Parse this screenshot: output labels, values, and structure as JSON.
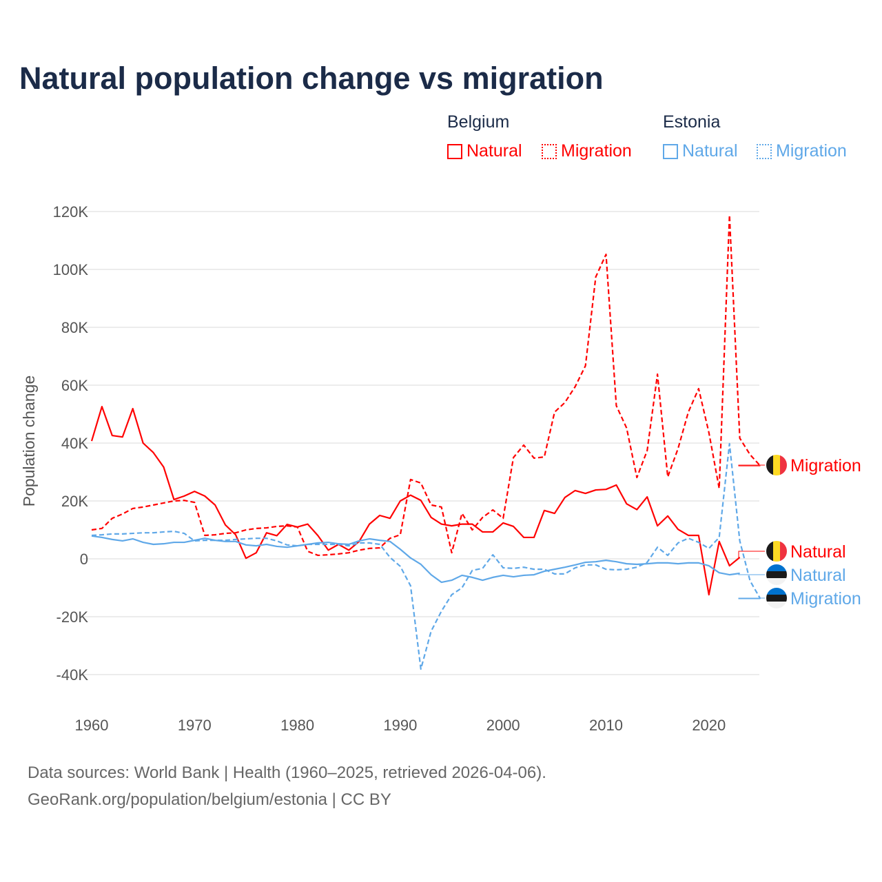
{
  "title": "Natural population change vs migration",
  "legend": {
    "groups": [
      {
        "name": "Belgium",
        "items": [
          "Natural",
          "Migration"
        ],
        "color": "#ff0000"
      },
      {
        "name": "Estonia",
        "items": [
          "Natural",
          "Migration"
        ],
        "color": "#5fa8e8"
      }
    ]
  },
  "footer": {
    "line1": "Data sources: World Bank | Health (1960–2025, retrieved 2026-04-06).",
    "line2": "GeoRank.org/population/belgium/estonia | CC BY"
  },
  "chart_data": {
    "type": "line",
    "title": "Natural population change vs migration",
    "xlabel": "",
    "ylabel": "Population change",
    "xlim": [
      1960,
      2025
    ],
    "ylim": [
      -50000,
      120000
    ],
    "x_ticks": [
      1960,
      1970,
      1980,
      1990,
      2000,
      2010,
      2020
    ],
    "x_tick_labels": [
      "1960",
      "1970",
      "1980",
      "1990",
      "2000",
      "2010",
      "2020"
    ],
    "y_ticks": [
      -40000,
      -20000,
      0,
      20000,
      40000,
      60000,
      80000,
      100000,
      120000
    ],
    "y_tick_labels": [
      "-40K",
      "-20K",
      "0",
      "20K",
      "40K",
      "60K",
      "80K",
      "100K",
      "120K"
    ],
    "grid": true,
    "legend_position": "top-right",
    "x_start": 1960,
    "series": [
      {
        "name": "Belgium Natural",
        "label": "Natural",
        "country": "Belgium",
        "color": "#ff0000",
        "dash": false,
        "values_k": [
          40.7,
          52.6,
          42.6,
          42.1,
          51.9,
          40,
          36.7,
          31.7,
          20.5,
          21.7,
          23.3,
          21.7,
          18.6,
          11.7,
          8.3,
          0.2,
          2.1,
          9,
          8,
          11.9,
          11,
          12,
          8,
          3,
          5,
          3,
          6,
          12,
          15,
          14,
          20,
          22,
          20.2,
          14.3,
          12,
          11.4,
          12,
          12,
          9.3,
          9.3,
          12.4,
          11.2,
          7.4,
          7.4,
          16.7,
          15.7,
          21.2,
          23.6,
          22.6,
          23.8,
          24,
          25.5,
          19,
          17,
          21.4,
          11.4,
          14.8,
          10.2,
          8.1,
          8.1,
          -12.4,
          6,
          -2.4,
          0.5
        ]
      },
      {
        "name": "Belgium Migration",
        "label": "Migration",
        "country": "Belgium",
        "color": "#ff0000",
        "dash": true,
        "values_k": [
          10,
          10.5,
          14,
          15.5,
          17.4,
          17.9,
          18.6,
          19.3,
          20,
          20.2,
          19.5,
          8.1,
          8.3,
          8.8,
          9,
          10,
          10.5,
          10.7,
          11.2,
          11.4,
          11,
          2.6,
          1.2,
          1.4,
          1.7,
          2.1,
          3,
          3.6,
          3.8,
          7.1,
          8.3,
          27.4,
          26.2,
          18.6,
          17.9,
          2.1,
          15.7,
          10,
          14.3,
          16.9,
          14,
          35,
          39.3,
          34.8,
          35.2,
          50.7,
          54,
          59.5,
          66.7,
          97.4,
          105.2,
          52.9,
          45.2,
          28.1,
          37.4,
          63.8,
          28.3,
          38.1,
          50.7,
          58.8,
          43.6,
          24.3,
          118.8,
          41.7,
          36,
          32.1
        ]
      },
      {
        "name": "Estonia Natural",
        "label": "Natural",
        "country": "Estonia",
        "color": "#5fa8e8",
        "dash": false,
        "values_k": [
          7.9,
          7.4,
          6.7,
          6.2,
          6.9,
          5.7,
          5,
          5.2,
          5.7,
          5.7,
          6.4,
          7.1,
          6.4,
          6,
          6,
          4.8,
          4.5,
          5,
          4.3,
          4,
          4.5,
          5,
          5.5,
          5.7,
          5.2,
          5,
          6.2,
          6.9,
          6.4,
          6,
          3.3,
          0.3,
          -1.9,
          -5.5,
          -8.1,
          -7.4,
          -5.7,
          -6.4,
          -7.4,
          -6.4,
          -5.7,
          -6.2,
          -5.7,
          -5.5,
          -4.3,
          -3.6,
          -2.9,
          -2.1,
          -1.2,
          -1,
          -0.5,
          -1,
          -1.7,
          -1.9,
          -1.7,
          -1.4,
          -1.4,
          -1.7,
          -1.4,
          -1.4,
          -2.4,
          -4.8,
          -5.5,
          -5
        ]
      },
      {
        "name": "Estonia Migration",
        "label": "Migration",
        "country": "Estonia",
        "color": "#5fa8e8",
        "dash": true,
        "values_k": [
          8.1,
          8.3,
          8.6,
          8.6,
          8.8,
          9,
          9,
          9.3,
          9.5,
          8.8,
          6.2,
          6.4,
          6.4,
          6.4,
          6.7,
          6.9,
          7.1,
          7.1,
          6.2,
          4.8,
          4.5,
          5,
          5,
          5,
          5,
          4.5,
          5.5,
          5.5,
          5,
          0.5,
          -2.6,
          -9.3,
          -38.1,
          -25,
          -18.1,
          -12.4,
          -10,
          -4,
          -3.3,
          1.4,
          -3.1,
          -3.3,
          -2.9,
          -3.6,
          -3.6,
          -5.2,
          -5.2,
          -3.1,
          -2.1,
          -2.1,
          -3.6,
          -3.8,
          -3.6,
          -2.9,
          -1.2,
          4,
          1.2,
          5.5,
          7.1,
          5.7,
          3.6,
          7.4,
          39.8,
          6.2,
          -7.6,
          -13.8
        ]
      }
    ]
  }
}
